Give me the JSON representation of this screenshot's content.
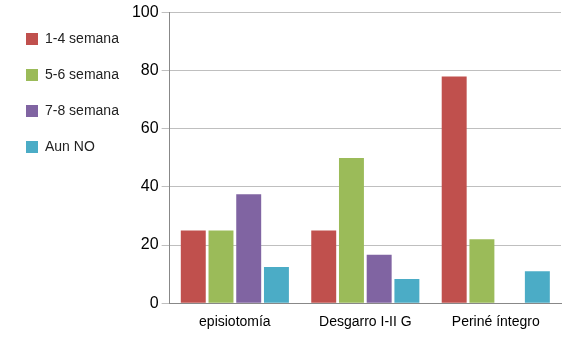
{
  "chart_data": {
    "type": "bar",
    "categories": [
      "episiotomía",
      "Desgarro I-II G",
      "Periné íntegro"
    ],
    "series": [
      {
        "name": "1-4 semana",
        "color": "#c0504d",
        "values": [
          25,
          25,
          78
        ]
      },
      {
        "name": "5-6 semana",
        "color": "#9bbb59",
        "values": [
          25,
          50,
          22
        ]
      },
      {
        "name": "7-8 semana",
        "color": "#8064a2",
        "values": [
          37.5,
          16.7,
          0
        ]
      },
      {
        "name": "Aun NO",
        "color": "#4bacc6",
        "values": [
          12.5,
          8.3,
          11
        ]
      }
    ],
    "ylim": [
      0,
      100
    ],
    "yticks": [
      0,
      20,
      40,
      60,
      80,
      100
    ],
    "grid": true,
    "legend": "left"
  }
}
